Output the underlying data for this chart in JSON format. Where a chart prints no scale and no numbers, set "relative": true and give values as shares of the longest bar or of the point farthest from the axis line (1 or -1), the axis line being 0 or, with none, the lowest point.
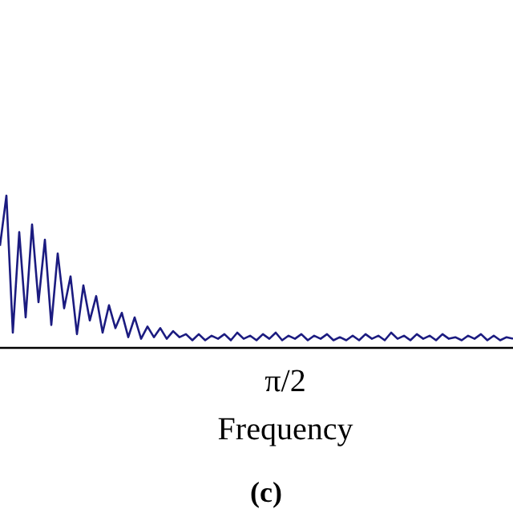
{
  "chart_data": {
    "type": "line",
    "relative": true,
    "xlabel": "Frequency",
    "annotations": [
      "π/2",
      "(c)"
    ],
    "categories": [
      null,
      null,
      null,
      null,
      null,
      null,
      null,
      null,
      null,
      null,
      null,
      null,
      null,
      null,
      null,
      null,
      null,
      null,
      null,
      null,
      null,
      null,
      null,
      null,
      null,
      null,
      null,
      null,
      null,
      null,
      null,
      null,
      null,
      null,
      null,
      null,
      null,
      null,
      null,
      null,
      null,
      null,
      null,
      null,
      null,
      null,
      null,
      null,
      null,
      null,
      null,
      null,
      null,
      null,
      null,
      null,
      null,
      null,
      null,
      null,
      null,
      null,
      null,
      null,
      null,
      null,
      null,
      null,
      null,
      null,
      null,
      null,
      null,
      null,
      null,
      null,
      null,
      null,
      null,
      null,
      null
    ],
    "series": [
      {
        "color": "#1b1b80",
        "values": [
          0.67,
          1,
          0.1,
          0.76,
          0.2,
          0.81,
          0.3,
          0.71,
          0.15,
          0.62,
          0.26,
          0.47,
          0.09,
          0.41,
          0.18,
          0.34,
          0.1,
          0.28,
          0.13,
          0.23,
          0.07,
          0.2,
          0.06,
          0.14,
          0.07,
          0.13,
          0.06,
          0.11,
          0.07,
          0.09,
          0.05,
          0.09,
          0.05,
          0.08,
          0.06,
          0.09,
          0.05,
          0.1,
          0.06,
          0.08,
          0.05,
          0.09,
          0.06,
          0.1,
          0.05,
          0.08,
          0.06,
          0.09,
          0.05,
          0.08,
          0.06,
          0.09,
          0.05,
          0.07,
          0.05,
          0.08,
          0.05,
          0.09,
          0.06,
          0.08,
          0.05,
          0.1,
          0.06,
          0.08,
          0.05,
          0.09,
          0.06,
          0.08,
          0.05,
          0.09,
          0.06,
          0.07,
          0.05,
          0.08,
          0.06,
          0.09,
          0.05,
          0.08,
          0.05,
          0.07,
          0.06
        ]
      }
    ]
  }
}
